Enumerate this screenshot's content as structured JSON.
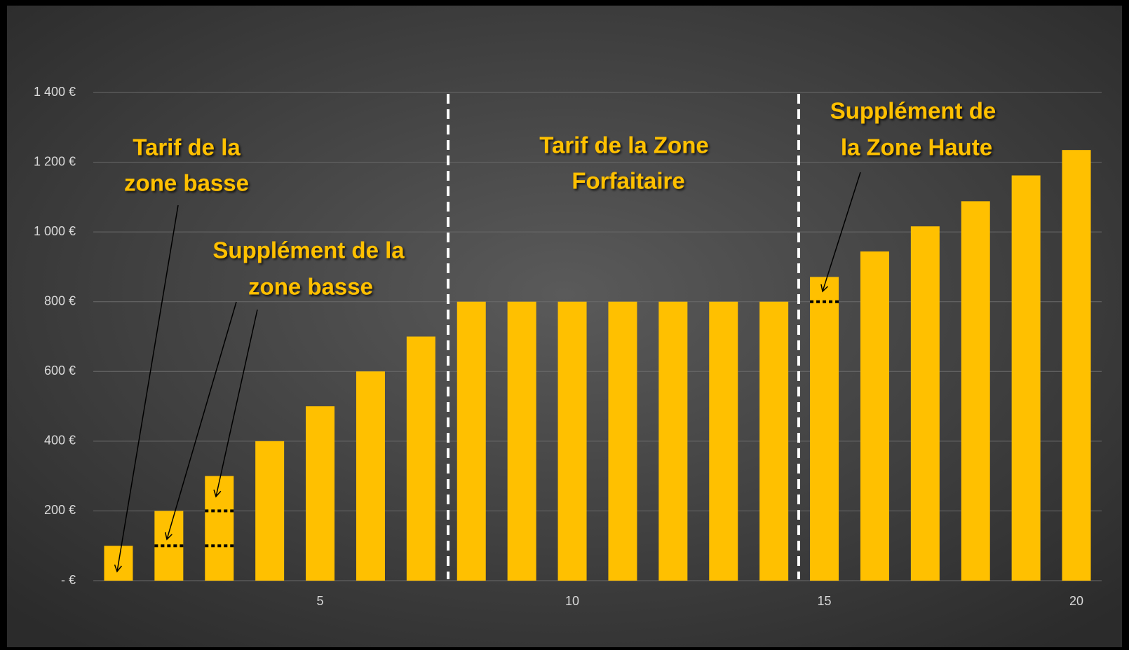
{
  "chart_data": {
    "type": "bar",
    "categories": [
      null,
      null,
      null,
      null,
      5,
      null,
      null,
      null,
      null,
      10,
      null,
      null,
      null,
      null,
      15,
      null,
      null,
      null,
      null,
      20
    ],
    "values": [
      100,
      200,
      300,
      400,
      500,
      600,
      700,
      800,
      800,
      800,
      800,
      800,
      800,
      800,
      871,
      944,
      1016,
      1088,
      1162,
      1235
    ],
    "inner_levels": [
      [],
      [
        100
      ],
      [
        100,
        200
      ],
      [],
      [],
      [],
      [],
      [],
      [],
      [],
      [],
      [],
      [],
      [],
      [
        800
      ],
      [],
      [],
      [],
      [],
      []
    ],
    "color": "#FFC000",
    "ylim": [
      0,
      1400
    ],
    "yticks": [
      {
        "value": 0,
        "label": "- €"
      },
      {
        "value": 200,
        "label": "200 €"
      },
      {
        "value": 400,
        "label": "400 €"
      },
      {
        "value": 600,
        "label": "600 €"
      },
      {
        "value": 800,
        "label": "800 €"
      },
      {
        "value": 1000,
        "label": "1 000 €"
      },
      {
        "value": 1200,
        "label": "1 200 €"
      },
      {
        "value": 1400,
        "label": "1 400 €"
      }
    ],
    "grid": true,
    "annotations": [
      [
        "Tarif de la",
        "zone basse"
      ],
      [
        "Supplément de la",
        "zone basse"
      ],
      [
        "Tarif de la Zone",
        "Forfaitaire"
      ],
      [
        "Supplément de",
        "la Zone Haute"
      ]
    ]
  }
}
